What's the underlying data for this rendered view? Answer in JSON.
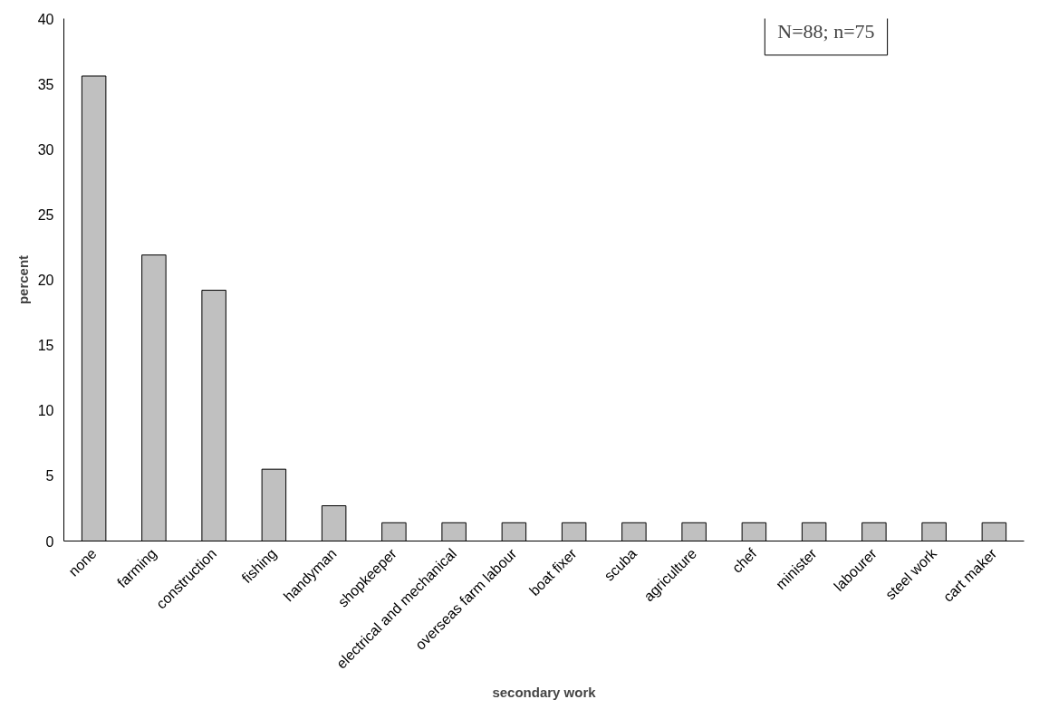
{
  "chart_data": {
    "type": "bar",
    "xlabel": "secondary work",
    "ylabel": "percent",
    "categories": [
      "none",
      "farming",
      "construction",
      "fishing",
      "handyman",
      "shopkeeper",
      "electrical and mechanical",
      "overseas farm labour",
      "boat fixer",
      "scuba",
      "agriculture",
      "chef",
      "minister",
      "labourer",
      "steel work",
      "cart maker"
    ],
    "values": [
      35.6,
      21.9,
      19.2,
      5.5,
      2.7,
      1.4,
      1.4,
      1.4,
      1.4,
      1.4,
      1.4,
      1.4,
      1.4,
      1.4,
      1.4,
      1.4
    ],
    "color": "#c0c0c0",
    "ylim": [
      0,
      40
    ],
    "yticks": [
      0,
      5,
      10,
      15,
      20,
      25,
      30,
      35,
      40
    ],
    "grid": false,
    "annotations": [
      "N=88; n=75"
    ]
  }
}
